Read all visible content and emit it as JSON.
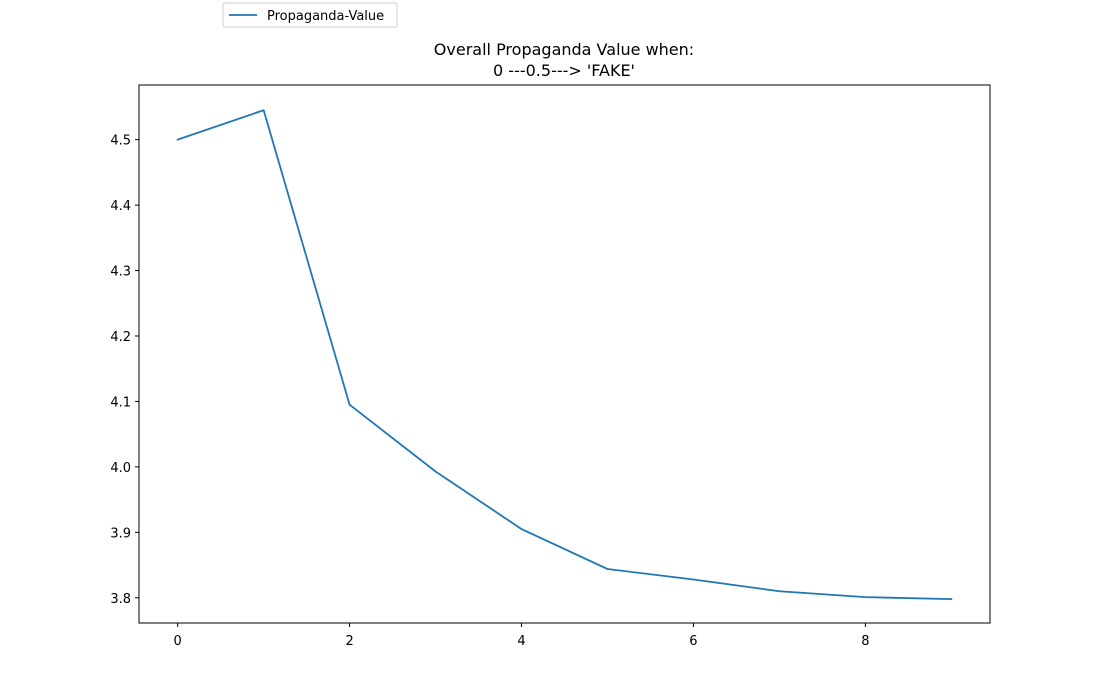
{
  "chart_data": {
    "type": "line",
    "title_lines": [
      "Overall Propaganda Value when:",
      "0 ---0.5---> 'FAKE'"
    ],
    "xlabel": "",
    "ylabel": "",
    "x": [
      0,
      1,
      2,
      3,
      4,
      5,
      6,
      7,
      8,
      9
    ],
    "series": [
      {
        "name": "Propaganda-Value",
        "color": "#1f77b4",
        "values": [
          4.5,
          4.545,
          4.095,
          3.993,
          3.905,
          3.844,
          3.828,
          3.81,
          3.801,
          3.798
        ]
      }
    ],
    "xlim": [
      -0.45,
      9.45
    ],
    "ylim": [
      3.7615,
      4.5835
    ],
    "xticks": [
      0,
      2,
      4,
      6,
      8
    ],
    "yticks": [
      3.8,
      3.9,
      4.0,
      4.1,
      4.2,
      4.3,
      4.4,
      4.5
    ],
    "xtick_labels": [
      "0",
      "2",
      "4",
      "6",
      "8"
    ],
    "ytick_labels": [
      "3.8",
      "3.9",
      "4.0",
      "4.1",
      "4.2",
      "4.3",
      "4.4",
      "4.5"
    ],
    "grid": false,
    "legend": {
      "placement": "above-top-left",
      "entries": [
        "Propaganda-Value"
      ]
    }
  }
}
